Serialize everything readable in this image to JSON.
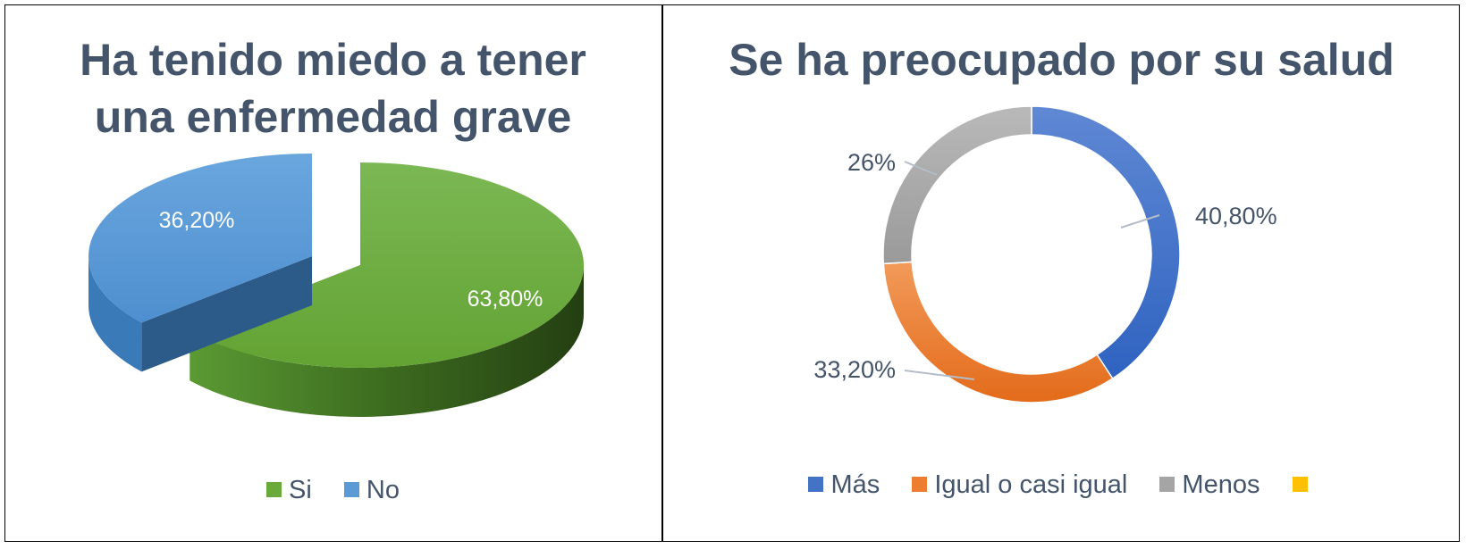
{
  "chart_data": [
    {
      "type": "pie",
      "title": "Ha tenido miedo a tener una enfermedad grave",
      "title_lines": [
        "Ha tenido miedo a tener",
        "una enfermedad grave"
      ],
      "categories": [
        "Si",
        "No"
      ],
      "values": [
        63.8,
        36.2
      ],
      "labels": [
        "63,80%",
        "36,20%"
      ],
      "colors": [
        "#6aaa3a",
        "#5b9bd5"
      ],
      "style": "3d-exploded",
      "legend": "bottom"
    },
    {
      "type": "pie",
      "subtype": "doughnut",
      "title": "Se ha preocupado por su salud",
      "categories": [
        "Más",
        "Igual o casi igual",
        "Menos",
        ""
      ],
      "values": [
        40.8,
        33.2,
        26,
        0
      ],
      "labels": [
        "40,80%",
        "33,20%",
        "26%"
      ],
      "colors": [
        "#4472c4",
        "#ed7d31",
        "#a5a5a5",
        "#ffc000"
      ],
      "legend": "bottom"
    }
  ]
}
